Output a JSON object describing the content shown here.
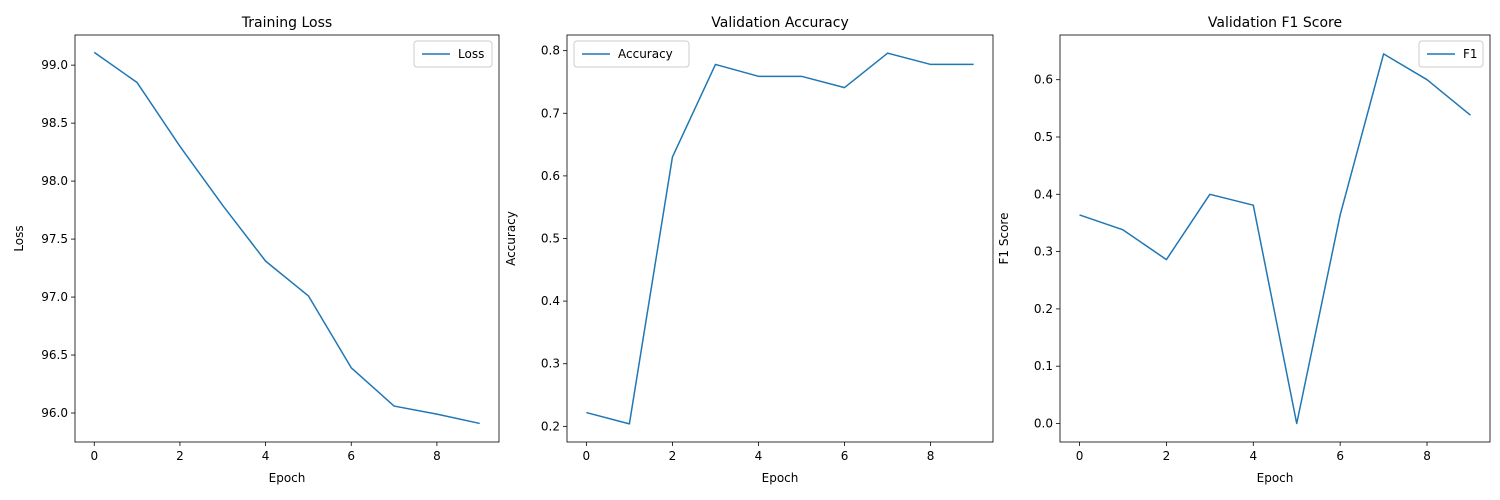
{
  "colors": {
    "line": "#1f77b4",
    "axis": "#000000",
    "legend_border": "#cccccc"
  },
  "chart_data": [
    {
      "type": "line",
      "title": "Training Loss",
      "xlabel": "Epoch",
      "ylabel": "Loss",
      "xlim": [
        -0.45,
        9.45
      ],
      "ylim": [
        95.75,
        99.26
      ],
      "xticks": [
        0,
        2,
        4,
        6,
        8
      ],
      "xtick_labels": [
        "0",
        "2",
        "4",
        "6",
        "8"
      ],
      "yticks": [
        96.0,
        96.5,
        97.0,
        97.5,
        98.0,
        98.5,
        99.0
      ],
      "ytick_labels": [
        "96.0",
        "96.5",
        "97.0",
        "97.5",
        "98.0",
        "98.5",
        "99.0"
      ],
      "legend_position": "upper-right",
      "grid": false,
      "series": [
        {
          "name": "Loss",
          "x": [
            0,
            1,
            2,
            3,
            4,
            5,
            6,
            7,
            8,
            9
          ],
          "y": [
            99.11,
            98.85,
            98.3,
            97.79,
            97.31,
            97.01,
            96.39,
            96.06,
            95.99,
            95.91
          ]
        }
      ]
    },
    {
      "type": "line",
      "title": "Validation Accuracy",
      "xlabel": "Epoch",
      "ylabel": "Accuracy",
      "xlim": [
        -0.45,
        9.45
      ],
      "ylim": [
        0.175,
        0.825
      ],
      "xticks": [
        0,
        2,
        4,
        6,
        8
      ],
      "xtick_labels": [
        "0",
        "2",
        "4",
        "6",
        "8"
      ],
      "yticks": [
        0.2,
        0.3,
        0.4,
        0.5,
        0.6,
        0.7,
        0.8
      ],
      "ytick_labels": [
        "0.2",
        "0.3",
        "0.4",
        "0.5",
        "0.6",
        "0.7",
        "0.8"
      ],
      "legend_position": "upper-left",
      "grid": false,
      "series": [
        {
          "name": "Accuracy",
          "x": [
            0,
            1,
            2,
            3,
            4,
            5,
            6,
            7,
            8,
            9
          ],
          "y": [
            0.222,
            0.204,
            0.63,
            0.778,
            0.759,
            0.759,
            0.741,
            0.796,
            0.778,
            0.778
          ]
        }
      ]
    },
    {
      "type": "line",
      "title": "Validation F1 Score",
      "xlabel": "Epoch",
      "ylabel": "F1 Score",
      "xlim": [
        -0.45,
        9.45
      ],
      "ylim": [
        -0.0323,
        0.678
      ],
      "xticks": [
        0,
        2,
        4,
        6,
        8
      ],
      "xtick_labels": [
        "0",
        "2",
        "4",
        "6",
        "8"
      ],
      "yticks": [
        0.0,
        0.1,
        0.2,
        0.3,
        0.4,
        0.5,
        0.6
      ],
      "ytick_labels": [
        "0.0",
        "0.1",
        "0.2",
        "0.3",
        "0.4",
        "0.5",
        "0.6"
      ],
      "legend_position": "upper-right",
      "grid": false,
      "series": [
        {
          "name": "F1",
          "x": [
            0,
            1,
            2,
            3,
            4,
            5,
            6,
            7,
            8,
            9
          ],
          "y": [
            0.364,
            0.338,
            0.286,
            0.4,
            0.381,
            0.0,
            0.364,
            0.645,
            0.6,
            0.538
          ]
        }
      ]
    }
  ]
}
